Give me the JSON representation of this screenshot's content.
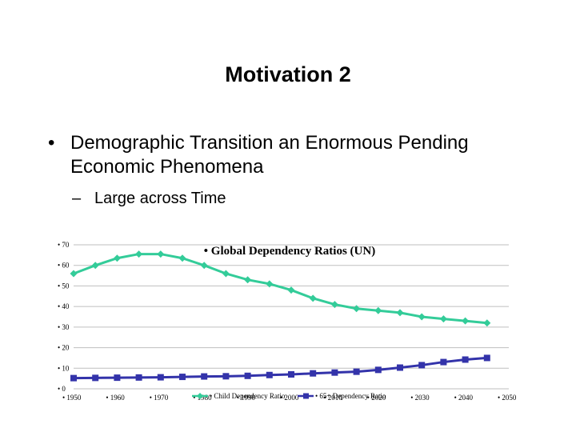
{
  "slide": {
    "title": "Motivation 2",
    "bullet_marker": "•",
    "bullet_text": "Demographic Transition an Enormous Pending Economic Phenomena",
    "sub_marker": "–",
    "sub_text": "Large across Time"
  },
  "chart_data": {
    "type": "line",
    "title": "• Global Dependency Ratios (UN)",
    "xlabel": "",
    "ylabel": "",
    "ylim": [
      0,
      70
    ],
    "xlim": [
      1950,
      2050
    ],
    "y_ticks": [
      0,
      10,
      20,
      30,
      40,
      50,
      60,
      70
    ],
    "y_tick_labels": [
      "• 0",
      "• 10",
      "• 20",
      "• 30",
      "• 40",
      "• 50",
      "• 60",
      "• 70"
    ],
    "x_ticks": [
      1950,
      1960,
      1970,
      1980,
      1990,
      2000,
      2010,
      2020,
      2030,
      2040,
      2050
    ],
    "x_tick_labels": [
      "• 1950",
      "• 1960",
      "• 1970",
      "• 1980",
      "• 1990",
      "• 2000",
      "• 2010",
      "• 2020",
      "• 2030",
      "• 2040",
      "• 2050"
    ],
    "grid": true,
    "legend_position": "bottom",
    "x": [
      1950,
      1955,
      1960,
      1965,
      1970,
      1975,
      1980,
      1985,
      1990,
      1995,
      2000,
      2005,
      2010,
      2015,
      2020,
      2025,
      2030,
      2035,
      2040,
      2045
    ],
    "series": [
      {
        "name": "Child Dependency Ratio",
        "legend_label": "• Child Dependency Ratio",
        "color": "#33cc99",
        "marker": "diamond",
        "values": [
          56,
          60,
          63.5,
          65.5,
          65.5,
          63.5,
          60,
          56,
          53,
          51,
          48,
          44,
          41,
          39,
          38,
          37,
          35,
          34,
          33,
          32
        ]
      },
      {
        "name": "65+ Dependency Ratio",
        "legend_label": "• 65+ Dependency Ratio",
        "color": "#3333aa",
        "marker": "square",
        "values": [
          5.2,
          5.3,
          5.4,
          5.5,
          5.6,
          5.8,
          6.0,
          6.1,
          6.3,
          6.7,
          7.0,
          7.5,
          7.9,
          8.3,
          9.2,
          10.3,
          11.5,
          13.0,
          14.2,
          15.0
        ]
      }
    ]
  }
}
